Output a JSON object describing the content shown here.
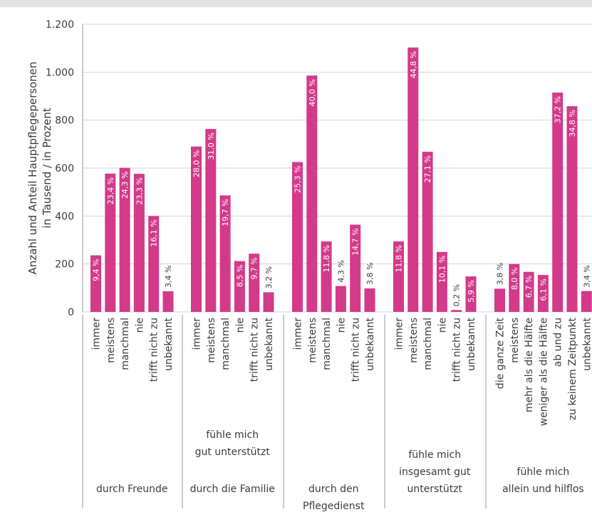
{
  "chart_data": {
    "type": "bar",
    "ylabel_lines": [
      "Anzahl und Anteil Hauptpflegepersonen",
      "in Tausend / in Prozent"
    ],
    "ylim": [
      0,
      1200
    ],
    "yticks": [
      0,
      200,
      400,
      600,
      800,
      1000,
      1200
    ],
    "ytick_labels": [
      "0",
      "200",
      "400",
      "600",
      "800",
      "1.000",
      "1.200"
    ],
    "grid": "horizontal",
    "color": "#d33a8a",
    "groups": [
      {
        "label_lines": [
          "durch Freunde"
        ],
        "heading_lines": [],
        "categories": [
          "immer",
          "meistens",
          "manchmal",
          "nie",
          "trifft nicht zu",
          "unbekannt"
        ],
        "values": [
          236,
          577,
          601,
          576,
          400,
          86
        ],
        "labels": [
          "9,4 %",
          "23,4 %",
          "24,3 %",
          "23,3 %",
          "16,1 %",
          "3,4 %"
        ]
      },
      {
        "label_lines": [
          "durch die Familie"
        ],
        "heading_lines": [
          "fühle mich",
          "gut unterstützt"
        ],
        "categories": [
          "immer",
          "meistens",
          "manchmal",
          "nie",
          "trifft nicht zu",
          "unbekannt"
        ],
        "values": [
          690,
          763,
          486,
          212,
          243,
          82
        ],
        "labels": [
          "28,0 %",
          "31,0 %",
          "19,7 %",
          "8,5 %",
          "9,7 %",
          "3,2 %"
        ]
      },
      {
        "label_lines": [
          "durch den",
          "Pflegedienst"
        ],
        "heading_lines": [],
        "categories": [
          "immer",
          "meistens",
          "manchmal",
          "nie",
          "trifft nicht zu",
          "unbekannt"
        ],
        "values": [
          625,
          986,
          294,
          108,
          364,
          98
        ],
        "labels": [
          "25,3 %",
          "40,0 %",
          "11,8 %",
          "4,3 %",
          "14,7 %",
          "3,8 %"
        ]
      },
      {
        "label_lines": [
          "fühle mich",
          "insgesamt gut",
          "unterstützt"
        ],
        "heading_lines": [],
        "categories": [
          "immer",
          "meistens",
          "manchmal",
          "nie",
          "trifft nicht zu",
          "unbekannt"
        ],
        "values": [
          294,
          1103,
          668,
          250,
          8,
          148
        ],
        "labels": [
          "11,8 %",
          "44,8 %",
          "27,1 %",
          "10,1 %",
          "0,2 %",
          "5,9 %"
        ]
      },
      {
        "label_lines": [
          "fühle mich",
          "allein und hilflos"
        ],
        "heading_lines": [],
        "categories": [
          "die ganze Zeit",
          "meistens",
          "mehr als die Hälfte",
          "weniger als die Hälfte",
          "ab und zu",
          "zu keinem Zeitpunkt",
          "unbekannt"
        ],
        "values": [
          97,
          200,
          167,
          154,
          915,
          858,
          87
        ],
        "labels": [
          "3,8 %",
          "8,0 %",
          "6,7 %",
          "6,1 %",
          "37,2 %",
          "34,8 %",
          "3,4 %"
        ]
      }
    ]
  }
}
